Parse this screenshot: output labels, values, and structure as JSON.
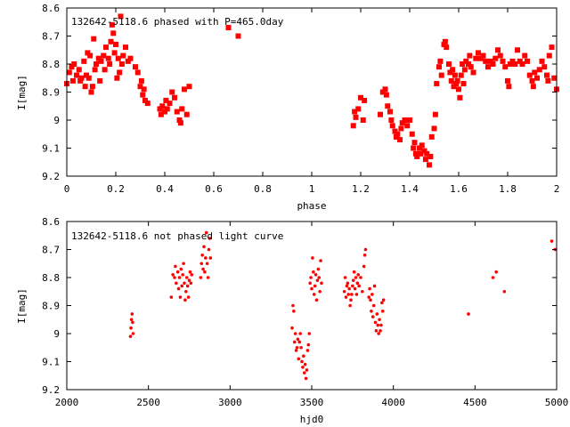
{
  "colors": {
    "points": "#ff0000",
    "axes": "#000000",
    "background": "#ffffff"
  },
  "chart_data": [
    {
      "type": "scatter",
      "title": "132642-5118.6 phased with P=465.0day",
      "xlabel": "phase",
      "ylabel": "I[mag]",
      "xlim": [
        0,
        2
      ],
      "ylim": [
        8.6,
        9.2
      ],
      "y_inverted": true,
      "xticks": [
        "0",
        "0.2",
        "0.4",
        "0.6",
        "0.8",
        "1",
        "1.2",
        "1.4",
        "1.6",
        "1.8",
        "2"
      ],
      "yticks": [
        "8.6",
        "8.7",
        "8.8",
        "8.9",
        "9",
        "9.1",
        "9.2"
      ],
      "marker": "star",
      "points": [
        [
          0.0,
          8.87
        ],
        [
          0.01,
          8.83
        ],
        [
          0.02,
          8.81
        ],
        [
          0.025,
          8.86
        ],
        [
          0.03,
          8.8
        ],
        [
          0.04,
          8.84
        ],
        [
          0.05,
          8.82
        ],
        [
          0.055,
          8.86
        ],
        [
          0.06,
          8.85
        ],
        [
          0.07,
          8.79
        ],
        [
          0.075,
          8.88
        ],
        [
          0.08,
          8.84
        ],
        [
          0.085,
          8.76
        ],
        [
          0.09,
          8.85
        ],
        [
          0.095,
          8.77
        ],
        [
          0.1,
          8.9
        ],
        [
          0.105,
          8.88
        ],
        [
          0.11,
          8.71
        ],
        [
          0.115,
          8.82
        ],
        [
          0.12,
          8.8
        ],
        [
          0.13,
          8.78
        ],
        [
          0.135,
          8.86
        ],
        [
          0.14,
          8.79
        ],
        [
          0.15,
          8.77
        ],
        [
          0.155,
          8.82
        ],
        [
          0.16,
          8.74
        ],
        [
          0.17,
          8.78
        ],
        [
          0.175,
          8.8
        ],
        [
          0.18,
          8.72
        ],
        [
          0.185,
          8.66
        ],
        [
          0.19,
          8.69
        ],
        [
          0.195,
          8.76
        ],
        [
          0.2,
          8.73
        ],
        [
          0.205,
          8.85
        ],
        [
          0.21,
          8.78
        ],
        [
          0.215,
          8.83
        ],
        [
          0.22,
          8.63
        ],
        [
          0.225,
          8.8
        ],
        [
          0.23,
          8.77
        ],
        [
          0.24,
          8.74
        ],
        [
          0.25,
          8.79
        ],
        [
          0.26,
          8.78
        ],
        [
          0.28,
          8.81
        ],
        [
          0.29,
          8.83
        ],
        [
          0.3,
          8.88
        ],
        [
          0.305,
          8.86
        ],
        [
          0.31,
          8.91
        ],
        [
          0.315,
          8.89
        ],
        [
          0.32,
          8.93
        ],
        [
          0.33,
          8.94
        ],
        [
          0.38,
          8.96
        ],
        [
          0.385,
          8.98
        ],
        [
          0.39,
          8.95
        ],
        [
          0.4,
          8.97
        ],
        [
          0.405,
          8.93
        ],
        [
          0.41,
          8.96
        ],
        [
          0.42,
          8.94
        ],
        [
          0.43,
          8.9
        ],
        [
          0.44,
          8.92
        ],
        [
          0.45,
          8.97
        ],
        [
          0.46,
          9.0
        ],
        [
          0.465,
          9.01
        ],
        [
          0.47,
          8.96
        ],
        [
          0.48,
          8.89
        ],
        [
          0.49,
          8.98
        ],
        [
          0.5,
          8.88
        ],
        [
          0.66,
          8.67
        ],
        [
          0.7,
          8.7
        ],
        [
          1.17,
          9.02
        ],
        [
          1.175,
          8.97
        ],
        [
          1.18,
          8.99
        ],
        [
          1.19,
          8.96
        ],
        [
          1.2,
          8.92
        ],
        [
          1.21,
          9.0
        ],
        [
          1.215,
          8.93
        ],
        [
          1.28,
          8.98
        ],
        [
          1.29,
          8.9
        ],
        [
          1.3,
          8.89
        ],
        [
          1.305,
          8.91
        ],
        [
          1.31,
          8.95
        ],
        [
          1.32,
          8.97
        ],
        [
          1.325,
          9.0
        ],
        [
          1.33,
          9.02
        ],
        [
          1.34,
          9.04
        ],
        [
          1.345,
          9.06
        ],
        [
          1.35,
          9.05
        ],
        [
          1.36,
          9.07
        ],
        [
          1.365,
          9.03
        ],
        [
          1.37,
          9.01
        ],
        [
          1.38,
          9.0
        ],
        [
          1.39,
          9.02
        ],
        [
          1.4,
          9.0
        ],
        [
          1.41,
          9.05
        ],
        [
          1.415,
          9.1
        ],
        [
          1.42,
          9.08
        ],
        [
          1.425,
          9.12
        ],
        [
          1.43,
          9.13
        ],
        [
          1.44,
          9.1
        ],
        [
          1.445,
          9.12
        ],
        [
          1.45,
          9.09
        ],
        [
          1.46,
          9.11
        ],
        [
          1.465,
          9.14
        ],
        [
          1.47,
          9.12
        ],
        [
          1.48,
          9.16
        ],
        [
          1.485,
          9.13
        ],
        [
          1.49,
          9.06
        ],
        [
          1.5,
          9.03
        ],
        [
          1.505,
          8.98
        ],
        [
          1.51,
          8.87
        ],
        [
          1.52,
          8.81
        ],
        [
          1.525,
          8.79
        ],
        [
          1.53,
          8.84
        ],
        [
          1.54,
          8.73
        ],
        [
          1.545,
          8.72
        ],
        [
          1.55,
          8.74
        ],
        [
          1.56,
          8.8
        ],
        [
          1.565,
          8.83
        ],
        [
          1.57,
          8.86
        ],
        [
          1.575,
          8.82
        ],
        [
          1.58,
          8.88
        ],
        [
          1.585,
          8.84
        ],
        [
          1.59,
          8.87
        ],
        [
          1.595,
          8.86
        ],
        [
          1.6,
          8.89
        ],
        [
          1.605,
          8.92
        ],
        [
          1.61,
          8.84
        ],
        [
          1.615,
          8.8
        ],
        [
          1.62,
          8.87
        ],
        [
          1.625,
          8.82
        ],
        [
          1.63,
          8.79
        ],
        [
          1.64,
          8.8
        ],
        [
          1.645,
          8.77
        ],
        [
          1.65,
          8.81
        ],
        [
          1.66,
          8.83
        ],
        [
          1.67,
          8.78
        ],
        [
          1.68,
          8.76
        ],
        [
          1.69,
          8.78
        ],
        [
          1.7,
          8.77
        ],
        [
          1.71,
          8.79
        ],
        [
          1.72,
          8.81
        ],
        [
          1.73,
          8.79
        ],
        [
          1.74,
          8.8
        ],
        [
          1.75,
          8.78
        ],
        [
          1.76,
          8.75
        ],
        [
          1.77,
          8.77
        ],
        [
          1.78,
          8.79
        ],
        [
          1.79,
          8.81
        ],
        [
          1.8,
          8.86
        ],
        [
          1.805,
          8.88
        ],
        [
          1.81,
          8.8
        ],
        [
          1.82,
          8.79
        ],
        [
          1.83,
          8.8
        ],
        [
          1.84,
          8.75
        ],
        [
          1.85,
          8.79
        ],
        [
          1.86,
          8.8
        ],
        [
          1.87,
          8.77
        ],
        [
          1.88,
          8.79
        ],
        [
          1.89,
          8.84
        ],
        [
          1.9,
          8.86
        ],
        [
          1.905,
          8.88
        ],
        [
          1.91,
          8.83
        ],
        [
          1.92,
          8.85
        ],
        [
          1.93,
          8.82
        ],
        [
          1.94,
          8.79
        ],
        [
          1.95,
          8.81
        ],
        [
          1.96,
          8.84
        ],
        [
          1.965,
          8.86
        ],
        [
          1.97,
          8.77
        ],
        [
          1.98,
          8.74
        ],
        [
          1.99,
          8.85
        ],
        [
          2.0,
          8.89
        ]
      ]
    },
    {
      "type": "scatter",
      "title": "132642-5118.6 not phased light curve",
      "xlabel": "hjd0",
      "ylabel": "I[mag]",
      "xlim": [
        2000,
        5000
      ],
      "ylim": [
        8.6,
        9.2
      ],
      "y_inverted": true,
      "xticks": [
        "2000",
        "2500",
        "3000",
        "3500",
        "4000",
        "4500",
        "5000"
      ],
      "yticks": [
        "8.6",
        "8.7",
        "8.8",
        "8.9",
        "9",
        "9.1",
        "9.2"
      ],
      "marker": "dot",
      "points": [
        [
          2390,
          9.01
        ],
        [
          2393,
          8.98
        ],
        [
          2396,
          8.95
        ],
        [
          2400,
          8.93
        ],
        [
          2403,
          8.96
        ],
        [
          2406,
          9.0
        ],
        [
          2640,
          8.87
        ],
        [
          2650,
          8.79
        ],
        [
          2660,
          8.8
        ],
        [
          2665,
          8.76
        ],
        [
          2670,
          8.82
        ],
        [
          2680,
          8.78
        ],
        [
          2685,
          8.84
        ],
        [
          2690,
          8.8
        ],
        [
          2695,
          8.87
        ],
        [
          2700,
          8.77
        ],
        [
          2705,
          8.83
        ],
        [
          2710,
          8.79
        ],
        [
          2715,
          8.75
        ],
        [
          2720,
          8.82
        ],
        [
          2725,
          8.88
        ],
        [
          2730,
          8.85
        ],
        [
          2735,
          8.8
        ],
        [
          2740,
          8.83
        ],
        [
          2745,
          8.87
        ],
        [
          2750,
          8.81
        ],
        [
          2755,
          8.78
        ],
        [
          2760,
          8.82
        ],
        [
          2765,
          8.79
        ],
        [
          2820,
          8.8
        ],
        [
          2825,
          8.75
        ],
        [
          2830,
          8.72
        ],
        [
          2835,
          8.77
        ],
        [
          2840,
          8.69
        ],
        [
          2845,
          8.78
        ],
        [
          2850,
          8.73
        ],
        [
          2855,
          8.64
        ],
        [
          2860,
          8.75
        ],
        [
          2865,
          8.8
        ],
        [
          2870,
          8.7
        ],
        [
          2875,
          8.66
        ],
        [
          2880,
          8.73
        ],
        [
          3380,
          8.98
        ],
        [
          3385,
          8.9
        ],
        [
          3390,
          8.92
        ],
        [
          3395,
          9.03
        ],
        [
          3400,
          9.0
        ],
        [
          3405,
          9.06
        ],
        [
          3410,
          9.05
        ],
        [
          3415,
          9.02
        ],
        [
          3420,
          9.09
        ],
        [
          3425,
          9.03
        ],
        [
          3430,
          9.0
        ],
        [
          3435,
          9.05
        ],
        [
          3440,
          9.1
        ],
        [
          3445,
          9.12
        ],
        [
          3450,
          9.08
        ],
        [
          3455,
          9.14
        ],
        [
          3460,
          9.11
        ],
        [
          3465,
          9.16
        ],
        [
          3470,
          9.13
        ],
        [
          3475,
          9.06
        ],
        [
          3480,
          9.04
        ],
        [
          3485,
          9.0
        ],
        [
          3490,
          8.82
        ],
        [
          3495,
          8.8
        ],
        [
          3500,
          8.84
        ],
        [
          3505,
          8.73
        ],
        [
          3510,
          8.78
        ],
        [
          3515,
          8.86
        ],
        [
          3520,
          8.83
        ],
        [
          3525,
          8.79
        ],
        [
          3530,
          8.88
        ],
        [
          3535,
          8.81
        ],
        [
          3540,
          8.77
        ],
        [
          3545,
          8.8
        ],
        [
          3550,
          8.85
        ],
        [
          3555,
          8.74
        ],
        [
          3560,
          8.82
        ],
        [
          3700,
          8.85
        ],
        [
          3705,
          8.8
        ],
        [
          3710,
          8.87
        ],
        [
          3715,
          8.83
        ],
        [
          3720,
          8.82
        ],
        [
          3725,
          8.86
        ],
        [
          3730,
          8.84
        ],
        [
          3735,
          8.9
        ],
        [
          3740,
          8.88
        ],
        [
          3745,
          8.86
        ],
        [
          3750,
          8.83
        ],
        [
          3755,
          8.81
        ],
        [
          3760,
          8.78
        ],
        [
          3765,
          8.84
        ],
        [
          3770,
          8.8
        ],
        [
          3775,
          8.86
        ],
        [
          3780,
          8.82
        ],
        [
          3785,
          8.79
        ],
        [
          3790,
          8.83
        ],
        [
          3800,
          8.8
        ],
        [
          3810,
          8.85
        ],
        [
          3820,
          8.76
        ],
        [
          3825,
          8.72
        ],
        [
          3830,
          8.7
        ],
        [
          3850,
          8.87
        ],
        [
          3855,
          8.84
        ],
        [
          3860,
          8.88
        ],
        [
          3865,
          8.92
        ],
        [
          3870,
          8.86
        ],
        [
          3875,
          8.94
        ],
        [
          3880,
          8.9
        ],
        [
          3885,
          8.83
        ],
        [
          3890,
          8.96
        ],
        [
          3895,
          8.99
        ],
        [
          3900,
          8.93
        ],
        [
          3905,
          8.97
        ],
        [
          3910,
          9.0
        ],
        [
          3915,
          8.95
        ],
        [
          3920,
          8.99
        ],
        [
          3925,
          8.97
        ],
        [
          3930,
          8.89
        ],
        [
          3935,
          8.92
        ],
        [
          3940,
          8.88
        ],
        [
          4460,
          8.93
        ],
        [
          4610,
          8.8
        ],
        [
          4630,
          8.78
        ],
        [
          4680,
          8.85
        ],
        [
          4970,
          8.67
        ],
        [
          4990,
          8.7
        ]
      ]
    }
  ]
}
